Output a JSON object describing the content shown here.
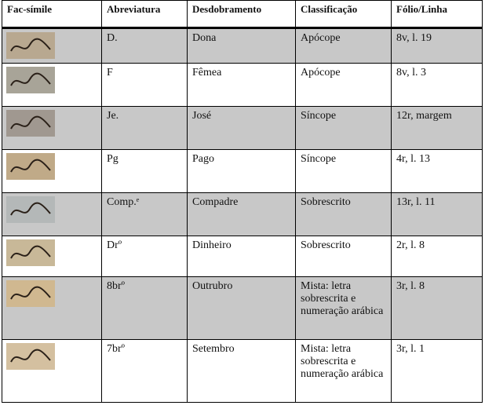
{
  "headers": [
    "Fac-símile",
    "Abreviatura",
    "Desdobramento",
    "Classificação",
    "Fólio/Linha"
  ],
  "rows": [
    {
      "abbr": "D.",
      "full": "Dona",
      "cls": "Apócope",
      "folio": "8v, l. 19",
      "bg": "#b8a890"
    },
    {
      "abbr": "F",
      "full": "Fêmea",
      "cls": "Apócope",
      "folio": "8v, l. 3",
      "bg": "#a8a498"
    },
    {
      "abbr": "Je.",
      "full": "José",
      "cls": "Síncope",
      "folio": "12r, margem",
      "bg": "#a09890"
    },
    {
      "abbr": "Pg",
      "full": "Pago",
      "cls": "Síncope",
      "folio": "4r, l. 13",
      "bg": "#c0aa88"
    },
    {
      "abbr": "Comp.ᵉ",
      "full": "Compadre",
      "cls": "Sobrescrito",
      "folio": "13r, l. 11",
      "bg": "#b4b8b8"
    },
    {
      "abbr": "Drº",
      "full": "Dinheiro",
      "cls": "Sobrescrito",
      "folio": "2r, l. 8",
      "bg": "#c8b898"
    },
    {
      "abbr": "8brº",
      "full": "Outrubro",
      "cls": "Mista: letra sobrescrita e numeração arábica",
      "folio": "3r, l. 8",
      "bg": "#d0b890"
    },
    {
      "abbr": "7brº",
      "full": "Setembro",
      "cls": "Mista: letra sobrescrita e numeração arábica",
      "folio": "3r, l. 1",
      "bg": "#d4c0a0"
    }
  ]
}
